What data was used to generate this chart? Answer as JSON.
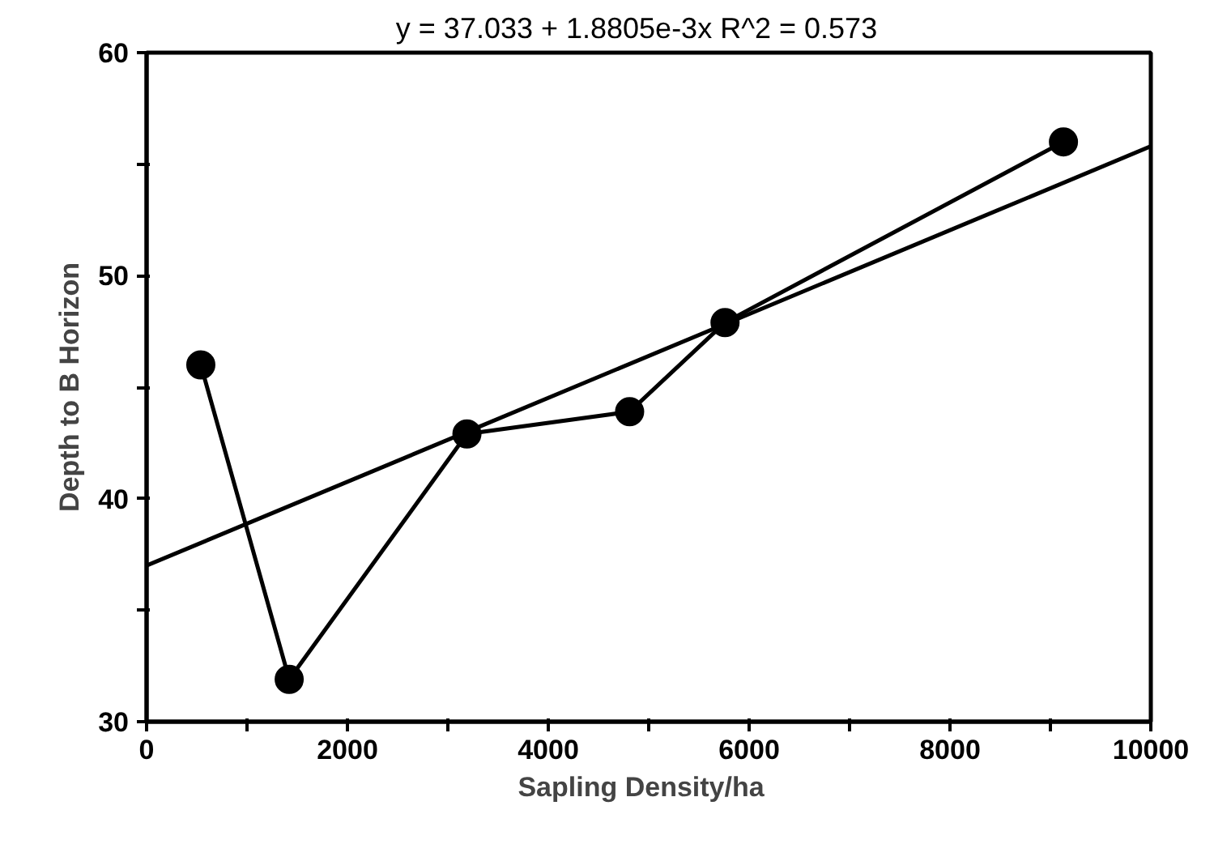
{
  "chart_data": {
    "type": "line",
    "xlabel": "Sapling   Density/ha",
    "ylabel": "Depth to B Horizon",
    "annotations": [
      "y = 37.033 + 1.8805e-3x    R^2 = 0.573"
    ],
    "xlim": [
      0,
      10000
    ],
    "ylim": [
      30,
      60
    ],
    "xticks": [
      0,
      {
        "value": 1000,
        "label": null
      },
      2000,
      {
        "value": 3000,
        "label": null
      },
      4000,
      {
        "value": 5000,
        "label": null
      },
      6000,
      {
        "value": 7000,
        "label": null
      },
      8000,
      {
        "value": 9000,
        "label": null
      },
      10000
    ],
    "yticks": [
      30,
      {
        "value": 35,
        "label": null
      },
      40,
      {
        "value": 45,
        "label": null
      },
      50,
      {
        "value": 55,
        "label": null
      },
      60
    ],
    "grid": false,
    "marker": "circle",
    "line_style": "solid",
    "series": [
      {
        "color": "#000000",
        "x": [
          540,
          1420,
          3190,
          4810,
          5760,
          9130
        ],
        "values": [
          46.0,
          31.9,
          42.9,
          43.9,
          47.9,
          56.0
        ]
      },
      {
        "type": "line",
        "marker": "none",
        "color": "#000000",
        "x": [
          0,
          10000
        ],
        "values": [
          37.0,
          55.8
        ]
      }
    ]
  }
}
